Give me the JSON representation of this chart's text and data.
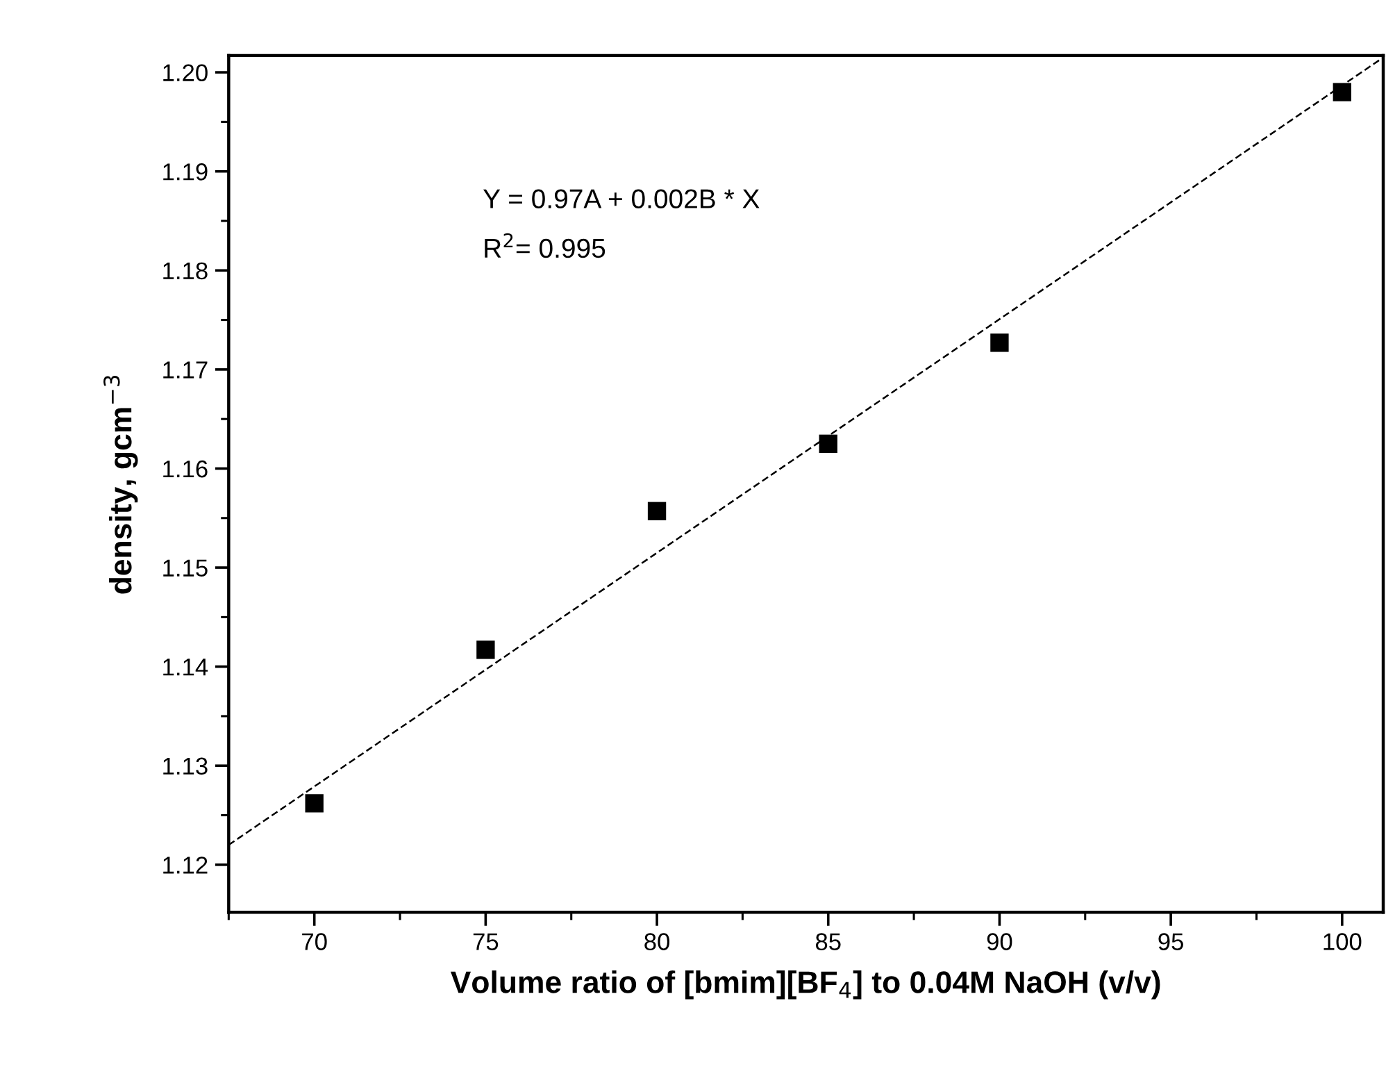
{
  "chart_data": {
    "type": "scatter",
    "xlabel": "Volume ratio of [bmim][BF$_{4}$] to 0.04M NaOH (v/v)",
    "ylabel": "density, gcm$^{−3}$",
    "annotations": [
      "Y = 0.97A + 0.002B * X",
      "R$^{2}$= 0.995"
    ],
    "x": [
      70,
      75,
      80,
      85,
      90,
      100
    ],
    "series": [
      {
        "color": "#000000",
        "marker": "square",
        "values": [
          1.1262,
          1.1417,
          1.1557,
          1.1625,
          1.1727,
          1.198
        ]
      },
      {
        "type": "line",
        "color": "#000000",
        "line_style": "dashed",
        "marker": "none",
        "x": [
          67.5,
          101.2
        ],
        "values": [
          1.122,
          1.2015
        ]
      }
    ],
    "xlim": [
      67.5,
      101.2
    ],
    "ylim": [
      1.1152,
      1.2017
    ],
    "xticks": [
      {
        "value": 67.5,
        "label": null
      },
      70,
      {
        "value": 72.5,
        "label": null
      },
      75,
      {
        "value": 77.5,
        "label": null
      },
      80,
      {
        "value": 82.5,
        "label": null
      },
      85,
      {
        "value": 87.5,
        "label": null
      },
      90,
      {
        "value": 92.5,
        "label": null
      },
      95,
      {
        "value": 97.5,
        "label": null
      },
      100
    ],
    "yticks": [
      {
        "value": 1.12,
        "label": "1.12"
      },
      {
        "value": 1.125,
        "label": null
      },
      {
        "value": 1.13,
        "label": "1.13"
      },
      {
        "value": 1.135,
        "label": null
      },
      {
        "value": 1.14,
        "label": "1.14"
      },
      {
        "value": 1.145,
        "label": null
      },
      {
        "value": 1.15,
        "label": "1.15"
      },
      {
        "value": 1.155,
        "label": null
      },
      {
        "value": 1.16,
        "label": "1.16"
      },
      {
        "value": 1.165,
        "label": null
      },
      {
        "value": 1.17,
        "label": "1.17"
      },
      {
        "value": 1.175,
        "label": null
      },
      {
        "value": 1.18,
        "label": "1.18"
      },
      {
        "value": 1.185,
        "label": null
      },
      {
        "value": 1.19,
        "label": "1.19"
      },
      {
        "value": 1.195,
        "label": null
      },
      {
        "value": 1.2,
        "label": "1.20"
      }
    ],
    "grid": false,
    "legend": false
  }
}
